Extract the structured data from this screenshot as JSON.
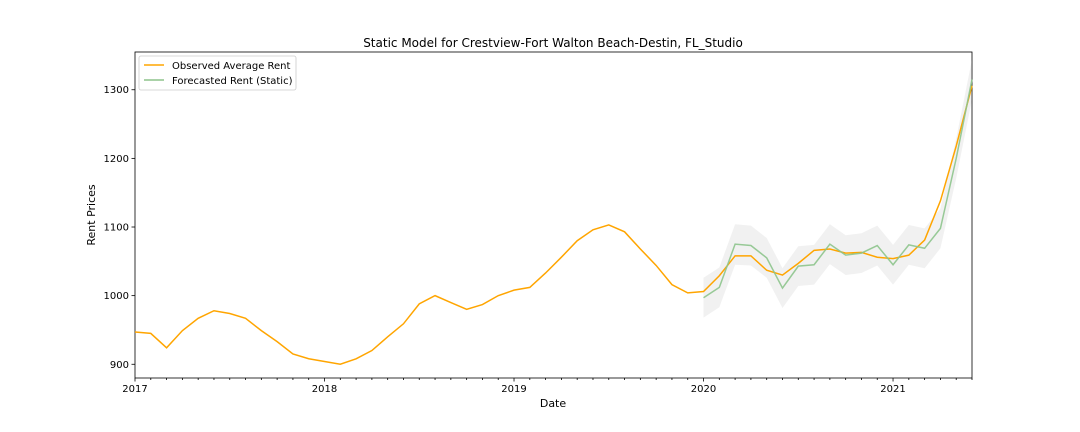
{
  "chart_data": {
    "type": "line",
    "title": "Static Model for Crestview-Fort Walton Beach-Destin, FL_Studio",
    "xlabel": "Date",
    "ylabel": "Rent Prices",
    "xlim": [
      "2017-01",
      "2021-06"
    ],
    "ylim": [
      880,
      1355
    ],
    "x_ticks": [
      {
        "date": "2017-01",
        "label": "2017"
      },
      {
        "date": "2018-01",
        "label": "2018"
      },
      {
        "date": "2019-01",
        "label": "2019"
      },
      {
        "date": "2020-01",
        "label": "2020"
      },
      {
        "date": "2021-01",
        "label": "2021"
      }
    ],
    "y_ticks": [
      900,
      1000,
      1100,
      1200,
      1300
    ],
    "grid": false,
    "legend": "top-left",
    "series": [
      {
        "name": "Observed Average Rent",
        "color": "#FFA500",
        "x": [
          "2017-01",
          "2017-02",
          "2017-03",
          "2017-04",
          "2017-05",
          "2017-06",
          "2017-07",
          "2017-08",
          "2017-09",
          "2017-10",
          "2017-11",
          "2017-12",
          "2018-01",
          "2018-02",
          "2018-03",
          "2018-04",
          "2018-05",
          "2018-06",
          "2018-07",
          "2018-08",
          "2018-09",
          "2018-10",
          "2018-11",
          "2018-12",
          "2019-01",
          "2019-02",
          "2019-03",
          "2019-04",
          "2019-05",
          "2019-06",
          "2019-07",
          "2019-08",
          "2019-09",
          "2019-10",
          "2019-11",
          "2019-12",
          "2020-01",
          "2020-02",
          "2020-03",
          "2020-04",
          "2020-05",
          "2020-06",
          "2020-07",
          "2020-08",
          "2020-09",
          "2020-10",
          "2020-11",
          "2020-12",
          "2021-01",
          "2021-02",
          "2021-03",
          "2021-04",
          "2021-05",
          "2021-06"
        ],
        "values": [
          947,
          945,
          924,
          949,
          967,
          978,
          974,
          967,
          949,
          933,
          915,
          908,
          904,
          900,
          908,
          920,
          940,
          959,
          988,
          1000,
          990,
          980,
          987,
          1000,
          1008,
          1012,
          1033,
          1056,
          1080,
          1096,
          1103,
          1093,
          1068,
          1044,
          1016,
          1004,
          1006,
          1029,
          1058,
          1058,
          1037,
          1030,
          1047,
          1066,
          1068,
          1062,
          1063,
          1056,
          1054,
          1059,
          1081,
          1138,
          1218,
          1306
        ]
      },
      {
        "name": "Forecasted Rent (Static)",
        "color": "#8DC48C",
        "x": [
          "2020-01",
          "2020-02",
          "2020-03",
          "2020-04",
          "2020-05",
          "2020-06",
          "2020-07",
          "2020-08",
          "2020-09",
          "2020-10",
          "2020-11",
          "2020-12",
          "2021-01",
          "2021-02",
          "2021-03",
          "2021-04",
          "2021-05",
          "2021-06"
        ],
        "values": [
          997,
          1012,
          1075,
          1073,
          1055,
          1011,
          1043,
          1045,
          1075,
          1059,
          1062,
          1073,
          1045,
          1074,
          1069,
          1098,
          1200,
          1315
        ],
        "ci_lower": [
          968,
          983,
          1045,
          1044,
          1026,
          982,
          1014,
          1016,
          1046,
          1030,
          1033,
          1044,
          1016,
          1045,
          1040,
          1069,
          1171,
          1286
        ],
        "ci_upper": [
          1026,
          1041,
          1104,
          1102,
          1084,
          1040,
          1072,
          1074,
          1104,
          1088,
          1091,
          1102,
          1074,
          1103,
          1098,
          1127,
          1229,
          1344
        ]
      }
    ]
  }
}
